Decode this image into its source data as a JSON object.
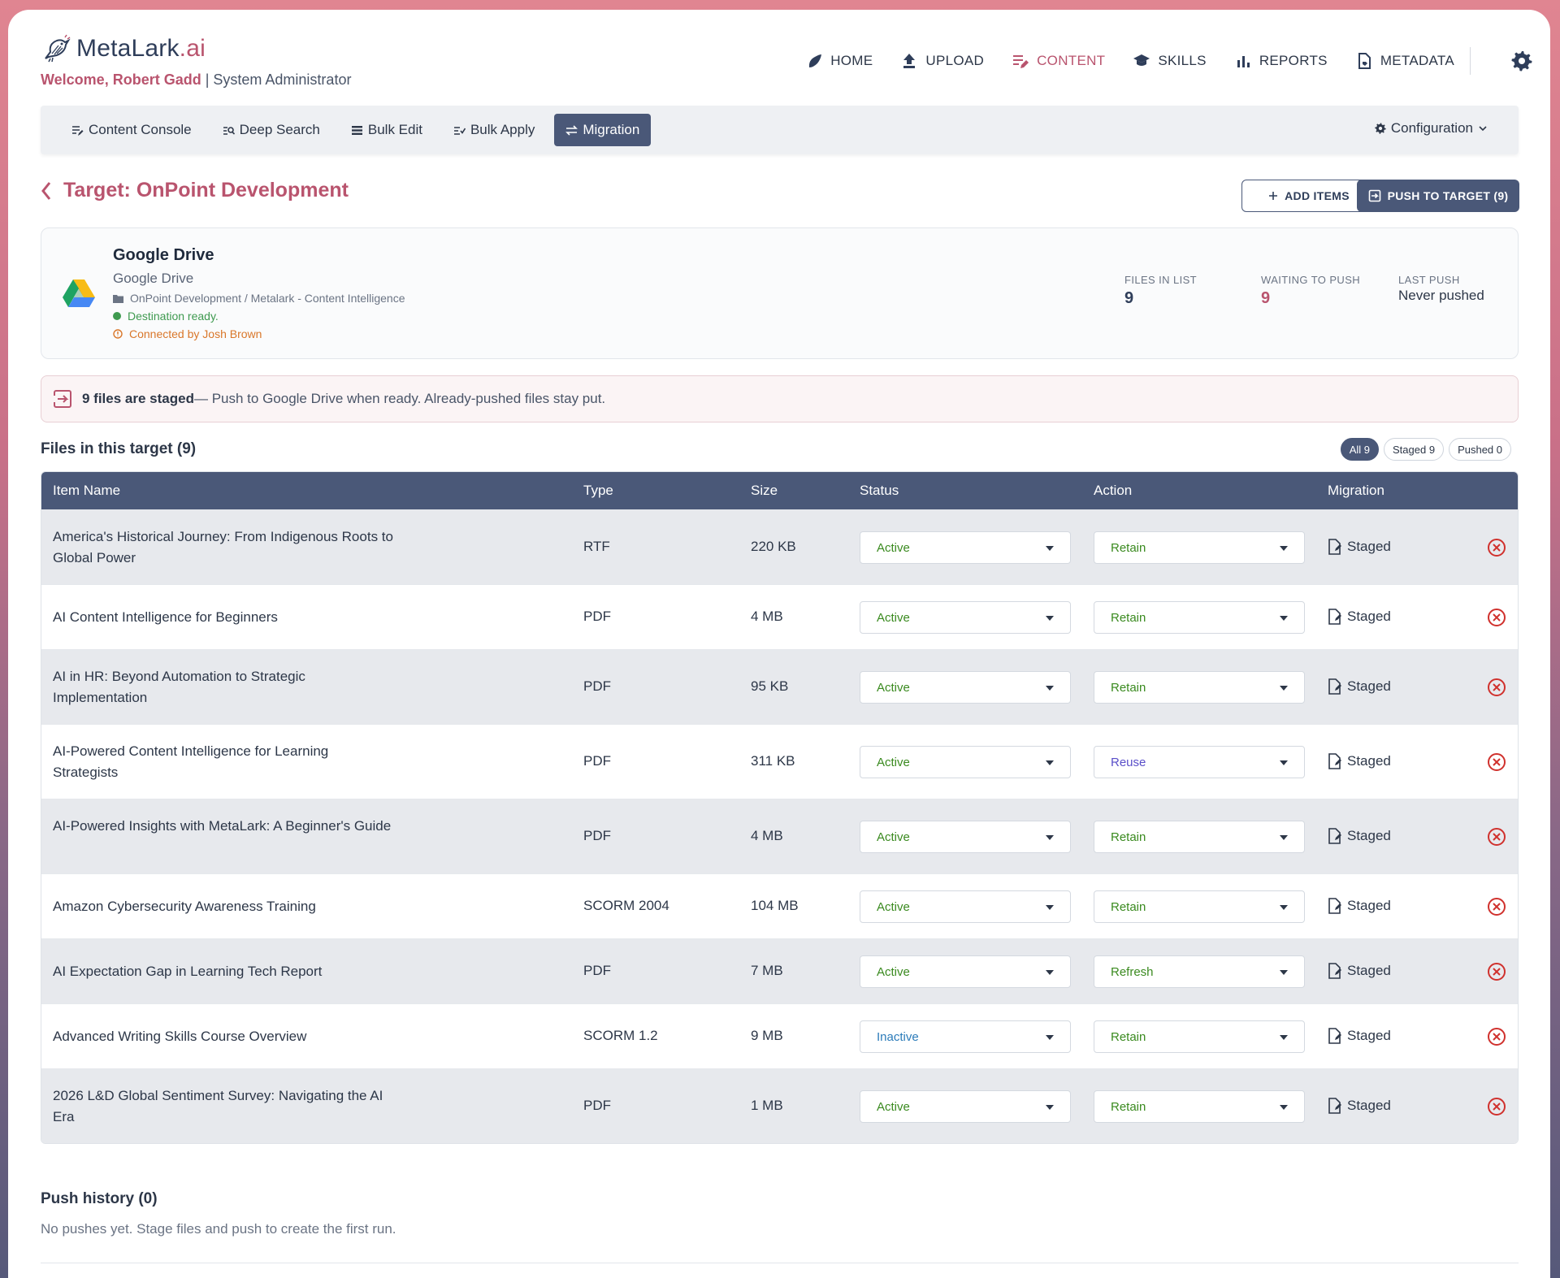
{
  "brand": {
    "name": "MetaLark",
    "suffix": ".ai"
  },
  "welcome": {
    "user": "Welcome, Robert Gadd",
    "role": "| System Administrator"
  },
  "topnav": [
    {
      "label": "HOME",
      "icon": "feather-icon"
    },
    {
      "label": "UPLOAD",
      "icon": "upload-icon"
    },
    {
      "label": "CONTENT",
      "icon": "content-edit-icon",
      "active": true
    },
    {
      "label": "SKILLS",
      "icon": "graduation-cap-icon"
    },
    {
      "label": "REPORTS",
      "icon": "bar-chart-icon"
    },
    {
      "label": "METADATA",
      "icon": "file-tag-icon"
    }
  ],
  "subnav": {
    "tabs": [
      {
        "label": "Content Console",
        "icon": "list-edit-icon"
      },
      {
        "label": "Deep Search",
        "icon": "list-search-icon"
      },
      {
        "label": "Bulk Edit",
        "icon": "list-icon"
      },
      {
        "label": "Bulk Apply",
        "icon": "list-check-icon"
      },
      {
        "label": "Migration",
        "icon": "swap-icon",
        "active": true
      }
    ],
    "config_label": "Configuration"
  },
  "page": {
    "title": "Target: OnPoint Development",
    "add_items": "ADD ITEMS",
    "push_to_target": "PUSH TO TARGET (9)"
  },
  "destination": {
    "name": "Google Drive",
    "sub": "Google Drive",
    "path": "OnPoint Development / Metalark - Content Intelligence",
    "ready": "Destination ready.",
    "connected": "Connected by Josh Brown",
    "stats": {
      "files_in_list_label": "FILES IN LIST",
      "files_in_list": "9",
      "waiting_label": "WAITING TO PUSH",
      "waiting": "9",
      "last_push_label": "LAST PUSH",
      "last_push": "Never pushed"
    }
  },
  "banner": {
    "bold": "9 files are staged",
    "text": "— Push to Google Drive when ready. Already-pushed files stay put."
  },
  "files": {
    "heading": "Files in this target (9)",
    "filters": [
      "All 9",
      "Staged 9",
      "Pushed 0"
    ],
    "columns": [
      "Item Name",
      "Type",
      "Size",
      "Status",
      "Action",
      "Migration"
    ],
    "rows": [
      {
        "name": "America's Historical Journey: From Indigenous Roots to Global Power",
        "type": "RTF",
        "size": "220 KB",
        "status": "Active",
        "action": "Retain",
        "migration": "Staged"
      },
      {
        "name": "AI Content Intelligence for Beginners",
        "type": "PDF",
        "size": "4 MB",
        "status": "Active",
        "action": "Retain",
        "migration": "Staged"
      },
      {
        "name": "AI in HR: Beyond Automation to Strategic Implementation",
        "type": "PDF",
        "size": "95 KB",
        "status": "Active",
        "action": "Retain",
        "migration": "Staged"
      },
      {
        "name": "AI-Powered Content Intelligence for Learning Strategists",
        "type": "PDF",
        "size": "311 KB",
        "status": "Active",
        "action": "Reuse",
        "migration": "Staged"
      },
      {
        "name": "AI-Powered Insights with MetaLark: A Beginner's Guide",
        "type": "PDF",
        "size": "4 MB",
        "status": "Active",
        "action": "Retain",
        "migration": "Staged"
      },
      {
        "name": "Amazon Cybersecurity Awareness Training",
        "type": "SCORM 2004",
        "size": "104 MB",
        "status": "Active",
        "action": "Retain",
        "migration": "Staged"
      },
      {
        "name": "AI Expectation Gap in Learning Tech Report",
        "type": "PDF",
        "size": "7 MB",
        "status": "Active",
        "action": "Refresh",
        "migration": "Staged"
      },
      {
        "name": "Advanced Writing Skills Course Overview",
        "type": "SCORM 1.2",
        "size": "9 MB",
        "status": "Inactive",
        "action": "Retain",
        "migration": "Staged"
      },
      {
        "name": "2026 L&D Global Sentiment Survey: Navigating the AI Era",
        "type": "PDF",
        "size": "1 MB",
        "status": "Active",
        "action": "Retain",
        "migration": "Staged"
      }
    ]
  },
  "history": {
    "heading": "Push history (0)",
    "empty": "No pushes yet. Stage files and push to create the first run."
  },
  "colors": {
    "accent": "#b9546e",
    "navy": "#4a5878",
    "status_active": "#3a8a1f",
    "status_inactive": "#2b7bb9",
    "action_reuse": "#5a4fc9",
    "delete": "#d0312d"
  }
}
